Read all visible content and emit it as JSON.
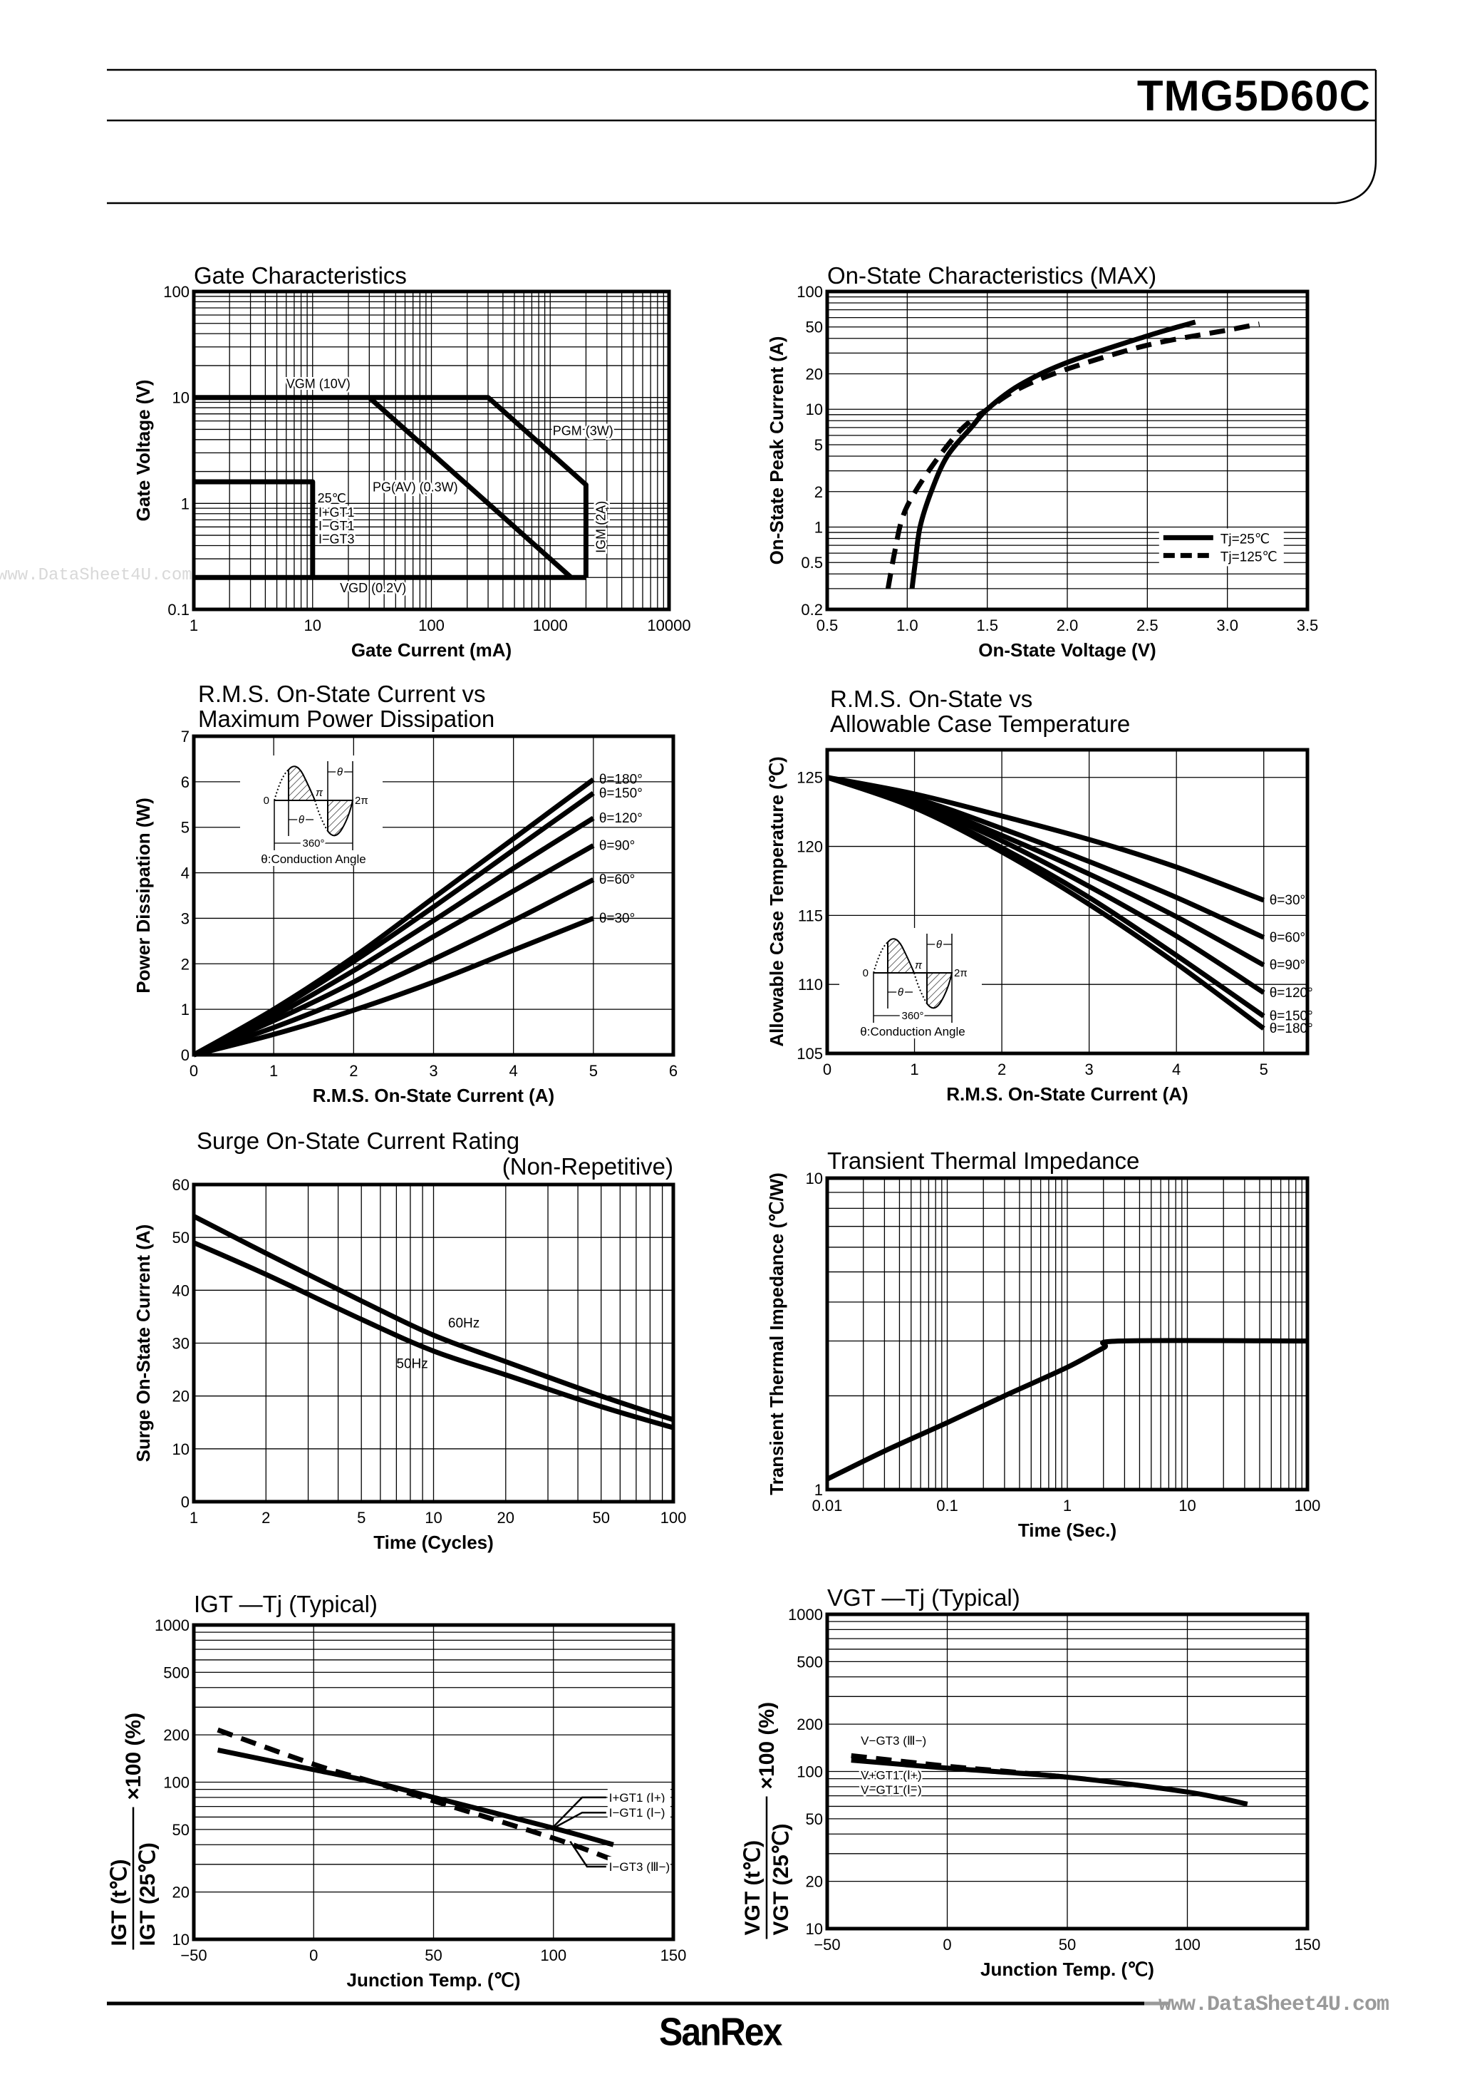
{
  "header": {
    "part_number": "TMG5D60C"
  },
  "footer": {
    "brand": "SanRex",
    "watermark": "www.DataSheet4U.com"
  },
  "watermark_left": "www.DataSheet4U.com",
  "inset": {
    "zero": "0",
    "pi": "π",
    "two_pi": "2π",
    "theta": "θ",
    "deg360": "360°",
    "caption": "θ:Conduction Angle"
  },
  "chart_data": [
    {
      "type": "line",
      "title": [
        "Gate Characteristics"
      ],
      "xlabel": "Gate Current (mA)",
      "ylabel": "Gate Voltage (V)",
      "xscale": "log",
      "yscale": "log",
      "xlim": [
        1,
        10000
      ],
      "ylim": [
        0.1,
        100
      ],
      "grid": true,
      "xticks": [
        1,
        10,
        100,
        1000,
        10000
      ],
      "xtick_labels": [
        "1",
        "10",
        "100",
        "1000",
        "10000"
      ],
      "yticks": [
        0.1,
        1,
        10,
        100
      ],
      "ytick_labels": [
        "0.1",
        "1",
        "10",
        "100"
      ],
      "series": [
        {
          "style": "solid",
          "points": [
            [
              1,
              10
            ],
            [
              300,
              10
            ],
            [
              2000,
              1.5
            ],
            [
              2000,
              0.2
            ]
          ]
        },
        {
          "style": "solid",
          "points": [
            [
              30,
              10
            ],
            [
              1500,
              0.2
            ]
          ]
        },
        {
          "style": "solid",
          "points": [
            [
              1,
              0.2
            ],
            [
              2000,
              0.2
            ]
          ]
        },
        {
          "style": "solid",
          "points": [
            [
              1,
              1.6
            ],
            [
              10,
              1.6
            ],
            [
              10,
              0.2
            ]
          ]
        }
      ],
      "annotations": [
        "VGM (10V)",
        "PGM (3W)",
        "PG(AV) (0.3W)",
        "VGD (0.2V)",
        "25℃",
        "I+GT1",
        "I−GT1",
        "I−GT3",
        "IGM (2A)"
      ]
    },
    {
      "type": "line",
      "title": [
        "On-State Characteristics (MAX)"
      ],
      "xlabel": "On-State Voltage (V)",
      "ylabel": "On-State Peak Current (A)",
      "xscale": "linear",
      "yscale": "log",
      "xlim": [
        0.5,
        3.5
      ],
      "ylim": [
        0.2,
        100
      ],
      "grid": true,
      "xticks": [
        0.5,
        1.0,
        1.5,
        2.0,
        2.5,
        3.0,
        3.5
      ],
      "xtick_labels": [
        "0.5",
        "1.0",
        "1.5",
        "2.0",
        "2.5",
        "3.0",
        "3.5"
      ],
      "yticks": [
        0.2,
        0.5,
        1,
        2,
        5,
        10,
        20,
        50,
        100
      ],
      "ytick_labels": [
        "0.2",
        "0.5",
        "1",
        "2",
        "5",
        "10",
        "20",
        "50",
        "100"
      ],
      "legend_placement": "bottom-right",
      "series": [
        {
          "name": "Tj=25℃",
          "style": "solid",
          "points": [
            [
              1.03,
              0.3
            ],
            [
              1.05,
              0.5
            ],
            [
              1.08,
              1
            ],
            [
              1.15,
              2
            ],
            [
              1.25,
              4
            ],
            [
              1.4,
              7
            ],
            [
              1.5,
              10
            ],
            [
              1.7,
              16
            ],
            [
              2.0,
              25
            ],
            [
              2.5,
              42
            ],
            [
              2.8,
              55
            ]
          ]
        },
        {
          "name": "Tj=125℃",
          "style": "dashed",
          "points": [
            [
              0.88,
              0.3
            ],
            [
              0.92,
              0.6
            ],
            [
              0.97,
              1.2
            ],
            [
              1.05,
              2
            ],
            [
              1.2,
              4
            ],
            [
              1.35,
              7
            ],
            [
              1.5,
              10
            ],
            [
              1.7,
              15
            ],
            [
              2.0,
              22
            ],
            [
              2.5,
              35
            ],
            [
              3.0,
              47
            ],
            [
              3.2,
              53
            ]
          ]
        }
      ],
      "annotations": []
    },
    {
      "type": "line",
      "title": [
        "R.M.S. On-State Current vs",
        "Maximum Power Dissipation"
      ],
      "xlabel": "R.M.S. On-State Current (A)",
      "ylabel": "Power Dissipation (W)",
      "xscale": "linear",
      "yscale": "linear",
      "xlim": [
        0,
        6
      ],
      "ylim": [
        0,
        7
      ],
      "grid": true,
      "xticks": [
        0,
        1,
        2,
        3,
        4,
        5,
        6
      ],
      "xtick_labels": [
        "0",
        "1",
        "2",
        "3",
        "4",
        "5",
        "6"
      ],
      "yticks": [
        0,
        1,
        2,
        3,
        4,
        5,
        6,
        7
      ],
      "ytick_labels": [
        "0",
        "1",
        "2",
        "3",
        "4",
        "5",
        "6",
        "7"
      ],
      "series": [
        {
          "name": "θ=180°",
          "style": "solid",
          "points": [
            [
              0,
              0
            ],
            [
              1,
              1.0
            ],
            [
              2,
              2.15
            ],
            [
              3,
              3.45
            ],
            [
              4,
              4.75
            ],
            [
              5,
              6.05
            ]
          ]
        },
        {
          "name": "θ=150°",
          "style": "solid",
          "points": [
            [
              0,
              0
            ],
            [
              1,
              0.95
            ],
            [
              2,
              2.05
            ],
            [
              3,
              3.25
            ],
            [
              4,
              4.5
            ],
            [
              5,
              5.75
            ]
          ]
        },
        {
          "name": "θ=120°",
          "style": "solid",
          "points": [
            [
              0,
              0
            ],
            [
              1,
              0.85
            ],
            [
              2,
              1.85
            ],
            [
              3,
              2.95
            ],
            [
              4,
              4.1
            ],
            [
              5,
              5.2
            ]
          ]
        },
        {
          "name": "θ=90°",
          "style": "solid",
          "points": [
            [
              0,
              0
            ],
            [
              1,
              0.75
            ],
            [
              2,
              1.6
            ],
            [
              3,
              2.6
            ],
            [
              4,
              3.6
            ],
            [
              5,
              4.6
            ]
          ]
        },
        {
          "name": "θ=60°",
          "style": "solid",
          "points": [
            [
              0,
              0
            ],
            [
              1,
              0.6
            ],
            [
              2,
              1.3
            ],
            [
              3,
              2.1
            ],
            [
              4,
              2.95
            ],
            [
              5,
              3.85
            ]
          ]
        },
        {
          "name": "θ=30°",
          "style": "solid",
          "points": [
            [
              0,
              0
            ],
            [
              1,
              0.45
            ],
            [
              2,
              0.98
            ],
            [
              3,
              1.6
            ],
            [
              4,
              2.3
            ],
            [
              5,
              3.0
            ]
          ]
        }
      ],
      "annotations": []
    },
    {
      "type": "line",
      "title": [
        "R.M.S. On-State vs",
        "Allowable Case Temperature"
      ],
      "xlabel": "R.M.S. On-State Current (A)",
      "ylabel": "Allowable Case Temperature (℃)",
      "xscale": "linear",
      "yscale": "linear",
      "xlim": [
        0,
        5.5
      ],
      "ylim": [
        105,
        127
      ],
      "grid": true,
      "xticks": [
        0,
        1,
        2,
        3,
        4,
        5
      ],
      "xtick_labels": [
        "0",
        "1",
        "2",
        "3",
        "4",
        "5"
      ],
      "yticks": [
        105,
        110,
        115,
        120,
        125
      ],
      "ytick_labels": [
        "105",
        "110",
        "115",
        "120",
        "125"
      ],
      "series": [
        {
          "name": "θ=30°",
          "style": "solid",
          "points": [
            [
              0,
              125
            ],
            [
              1,
              123.8
            ],
            [
              2,
              122.2
            ],
            [
              3,
              120.5
            ],
            [
              4,
              118.5
            ],
            [
              5,
              116.1
            ]
          ]
        },
        {
          "name": "θ=60°",
          "style": "solid",
          "points": [
            [
              0,
              125
            ],
            [
              1,
              123.5
            ],
            [
              2,
              121.3
            ],
            [
              3,
              118.9
            ],
            [
              4,
              116.3
            ],
            [
              5,
              113.4
            ]
          ]
        },
        {
          "name": "θ=90°",
          "style": "solid",
          "points": [
            [
              0,
              125
            ],
            [
              1,
              123.3
            ],
            [
              2,
              120.8
            ],
            [
              3,
              118.0
            ],
            [
              4,
              114.9
            ],
            [
              5,
              111.4
            ]
          ]
        },
        {
          "name": "θ=120°",
          "style": "solid",
          "points": [
            [
              0,
              125
            ],
            [
              1,
              123.1
            ],
            [
              2,
              120.4
            ],
            [
              3,
              117.1
            ],
            [
              4,
              113.5
            ],
            [
              5,
              109.4
            ]
          ]
        },
        {
          "name": "θ=150°",
          "style": "solid",
          "points": [
            [
              0,
              125
            ],
            [
              1,
              122.9
            ],
            [
              2,
              119.9
            ],
            [
              3,
              116.3
            ],
            [
              4,
              112.1
            ],
            [
              5,
              107.7
            ]
          ]
        },
        {
          "name": "θ=180°",
          "style": "solid",
          "points": [
            [
              0,
              125
            ],
            [
              1,
              122.8
            ],
            [
              2,
              119.6
            ],
            [
              3,
              115.8
            ],
            [
              4,
              111.5
            ],
            [
              5,
              106.8
            ]
          ]
        }
      ],
      "annotations": []
    },
    {
      "type": "line",
      "title": [
        "Surge On-State Current Rating",
        "(Non-Repetitive)"
      ],
      "xlabel": "Time (Cycles)",
      "ylabel": "Surge On-State Current (A)",
      "xscale": "log",
      "yscale": "linear",
      "xlim": [
        1,
        100
      ],
      "ylim": [
        0,
        60
      ],
      "grid": true,
      "xticks": [
        1,
        2,
        5,
        10,
        20,
        50,
        100
      ],
      "xtick_labels": [
        "1",
        "2",
        "5",
        "10",
        "20",
        "50",
        "100"
      ],
      "yticks": [
        0,
        10,
        20,
        30,
        40,
        50,
        60
      ],
      "ytick_labels": [
        "0",
        "10",
        "20",
        "30",
        "40",
        "50",
        "60"
      ],
      "series": [
        {
          "name": "60Hz",
          "style": "solid",
          "points": [
            [
              1,
              54
            ],
            [
              2,
              47
            ],
            [
              5,
              38
            ],
            [
              10,
              31.5
            ],
            [
              20,
              26.5
            ],
            [
              50,
              20
            ],
            [
              100,
              15.5
            ]
          ]
        },
        {
          "name": "50Hz",
          "style": "solid",
          "points": [
            [
              1,
              49
            ],
            [
              2,
              43
            ],
            [
              5,
              34.5
            ],
            [
              10,
              28.5
            ],
            [
              20,
              24
            ],
            [
              50,
              18
            ],
            [
              100,
              14
            ]
          ]
        }
      ],
      "annotations": []
    },
    {
      "type": "line",
      "title": [
        "Transient Thermal Impedance"
      ],
      "xlabel": "Time (Sec.)",
      "ylabel": "Transient Thermal Impedance (℃/W)",
      "xscale": "log",
      "yscale": "log",
      "xlim": [
        0.01,
        100
      ],
      "ylim": [
        1,
        10
      ],
      "grid": true,
      "xticks": [
        0.01,
        0.1,
        1,
        10,
        100
      ],
      "xtick_labels": [
        "0.01",
        "0.1",
        "1",
        "10",
        "100"
      ],
      "yticks": [
        1,
        10
      ],
      "ytick_labels": [
        "1",
        "10"
      ],
      "series": [
        {
          "style": "solid",
          "points": [
            [
              0.01,
              1.08
            ],
            [
              0.03,
              1.33
            ],
            [
              0.1,
              1.64
            ],
            [
              0.3,
              2.0
            ],
            [
              1,
              2.47
            ],
            [
              2,
              2.85
            ],
            [
              2.8,
              3.0
            ],
            [
              100,
              3.0
            ]
          ]
        }
      ],
      "annotations": []
    },
    {
      "type": "line",
      "title": [
        "IGT —Tj (Typical)"
      ],
      "xlabel": "Junction Temp. (℃)",
      "ylabel_num": "IGT (t℃)",
      "ylabel_den": "IGT (25℃)",
      "ylabel_suffix": "×100 (%)",
      "xscale": "linear",
      "yscale": "log",
      "xlim": [
        -50,
        150
      ],
      "ylim": [
        10,
        1000
      ],
      "grid": true,
      "xticks": [
        -50,
        0,
        50,
        100,
        150
      ],
      "xtick_labels": [
        "−50",
        "0",
        "50",
        "100",
        "150"
      ],
      "yticks": [
        10,
        20,
        50,
        100,
        200,
        500,
        1000
      ],
      "ytick_labels": [
        "10",
        "20",
        "50",
        "100",
        "200",
        "500",
        "1000"
      ],
      "series": [
        {
          "name": "I+GT1 (Ⅰ+) / I−GT1 (Ⅰ−)",
          "style": "solid",
          "points": [
            [
              -40,
              160
            ],
            [
              0,
              120
            ],
            [
              25,
              100
            ],
            [
              50,
              80
            ],
            [
              100,
              51
            ],
            [
              125,
              40
            ]
          ]
        },
        {
          "name": "I−GT3 (Ⅲ−)",
          "style": "dashed",
          "points": [
            [
              -40,
              215
            ],
            [
              0,
              130
            ],
            [
              25,
              100
            ],
            [
              50,
              76
            ],
            [
              100,
              44
            ],
            [
              125,
              32
            ]
          ]
        }
      ],
      "annotations": [
        "I+GT1 (Ⅰ+)",
        "I−GT1 (Ⅰ−)",
        "I−GT3 (Ⅲ−)"
      ]
    },
    {
      "type": "line",
      "title": [
        "VGT —Tj (Typical)"
      ],
      "xlabel": "Junction Temp. (℃)",
      "ylabel_num": "VGT (t℃)",
      "ylabel_den": "VGT (25℃)",
      "ylabel_suffix": "×100 (%)",
      "xscale": "linear",
      "yscale": "log",
      "xlim": [
        -50,
        150
      ],
      "ylim": [
        10,
        1000
      ],
      "grid": true,
      "xticks": [
        -50,
        0,
        50,
        100,
        150
      ],
      "xtick_labels": [
        "−50",
        "0",
        "50",
        "100",
        "150"
      ],
      "yticks": [
        10,
        20,
        50,
        100,
        200,
        500,
        1000
      ],
      "ytick_labels": [
        "10",
        "20",
        "50",
        "100",
        "200",
        "500",
        "1000"
      ],
      "series": [
        {
          "name": "V+GT1 (Ⅰ+) / V−GT1 (Ⅰ−)",
          "style": "solid",
          "points": [
            [
              -40,
              118
            ],
            [
              0,
              105
            ],
            [
              50,
              92
            ],
            [
              100,
              74
            ],
            [
              125,
              62
            ]
          ]
        },
        {
          "name": "V−GT3 (Ⅲ−)",
          "style": "dashed",
          "points": [
            [
              -40,
              126
            ],
            [
              0,
              108
            ],
            [
              25,
              100
            ],
            [
              50,
              92
            ]
          ]
        }
      ],
      "annotations": [
        "V−GT3 (Ⅲ−)",
        "V+GT1 (Ⅰ+)",
        "V−GT1 (Ⅰ−)"
      ]
    }
  ]
}
